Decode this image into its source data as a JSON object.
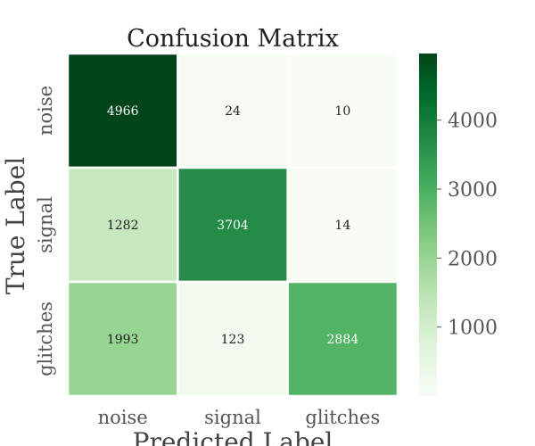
{
  "chart_data": {
    "type": "heatmap",
    "title": "Confusion Matrix",
    "xlabel": "Predicted Label",
    "ylabel": "True Label",
    "x_categories": [
      "noise",
      "signal",
      "glitches"
    ],
    "y_categories": [
      "noise",
      "signal",
      "glitches"
    ],
    "values": [
      [
        4966,
        24,
        10
      ],
      [
        1282,
        3704,
        14
      ],
      [
        1993,
        123,
        2884
      ]
    ],
    "colorscale": "Greens",
    "color_range": [
      0,
      4966
    ],
    "colorbar_ticks": [
      1000,
      2000,
      3000,
      4000
    ]
  }
}
